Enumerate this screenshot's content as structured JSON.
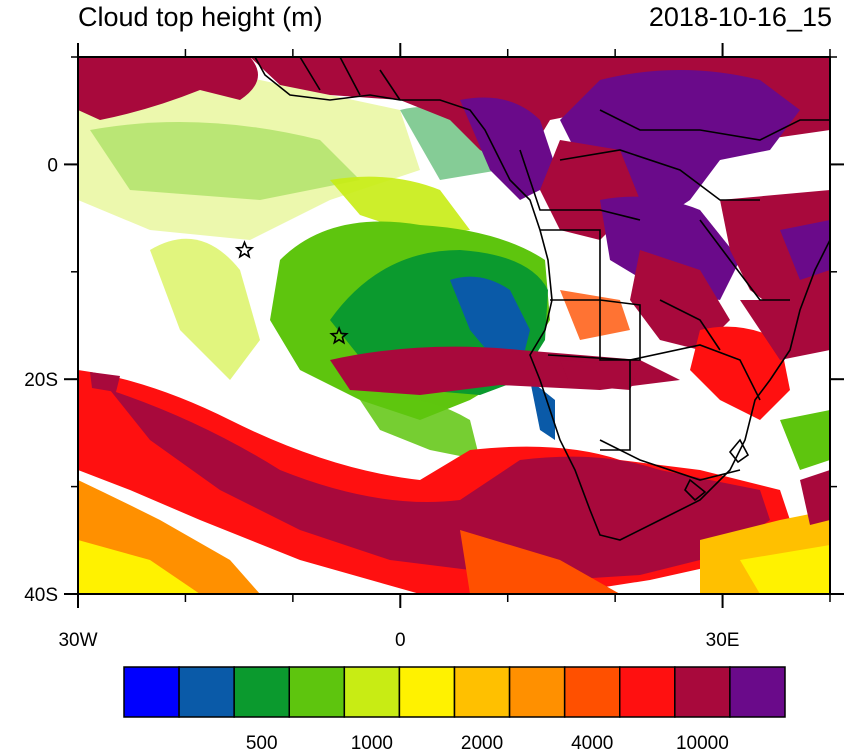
{
  "header": {
    "title": "Cloud top height (m)",
    "timestamp": "2018-10-16_15"
  },
  "map": {
    "lon_range": [
      -30,
      40
    ],
    "lat_range": [
      -40,
      10
    ],
    "lon_ticks": [
      {
        "value": -30,
        "label": "30W"
      },
      {
        "value": 0,
        "label": "0"
      },
      {
        "value": 30,
        "label": "30E"
      }
    ],
    "lat_ticks": [
      {
        "value": 0,
        "label": "0"
      },
      {
        "value": -20,
        "label": "20S"
      },
      {
        "value": -40,
        "label": "40S"
      }
    ],
    "markers": [
      {
        "name": "star",
        "lon": -14.5,
        "lat": -8.0
      },
      {
        "name": "star",
        "lon": -5.7,
        "lat": -16.0
      }
    ]
  },
  "colorbar": {
    "colors": [
      "#0000ff",
      "#0a5aa8",
      "#0b9a2e",
      "#5ec50e",
      "#c8ec14",
      "#fff200",
      "#ffc000",
      "#ff9000",
      "#ff5000",
      "#ff1010",
      "#a8093c",
      "#6a0a8a"
    ],
    "labels": [
      {
        "boundary": 2,
        "text": "500"
      },
      {
        "boundary": 4,
        "text": "1000"
      },
      {
        "boundary": 6,
        "text": "2000"
      },
      {
        "boundary": 8,
        "text": "4000"
      },
      {
        "boundary": 10,
        "text": "10000"
      }
    ]
  }
}
